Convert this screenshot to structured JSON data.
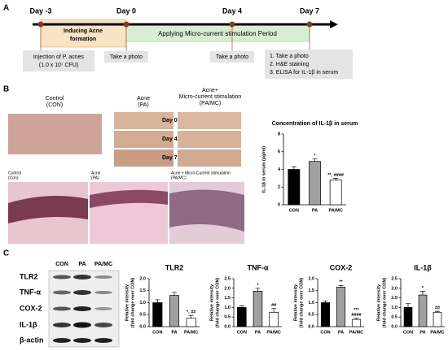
{
  "panel_labels": [
    "A",
    "B",
    "C"
  ],
  "timeline": {
    "days": [
      "Day -3",
      "Day 0",
      "Day 4",
      "Day 7"
    ],
    "phase1": [
      "Inducing Acne",
      "formation"
    ],
    "phase2": "Applying Micro-current stimulation Period",
    "injection": [
      "Injection of P. acnes",
      "(1.0 x 10⁷ CFU)"
    ],
    "photo1": "Take a photo",
    "photo2": "Take a photo",
    "final": [
      "1. Take a photo",
      "2. H&E staining",
      "3. ELISA for IL-1β in serum"
    ]
  },
  "photos": {
    "control": [
      "Control",
      "(CON)"
    ],
    "acne": [
      "Acne",
      "(PA)"
    ],
    "pamc": [
      "Acne+",
      "Micro-current stimulation",
      "(PA/MC)"
    ],
    "days": [
      "Day 0",
      "Day 4",
      "Day 7"
    ],
    "histology": [
      [
        "Control",
        "(Con)"
      ],
      [
        "Acne",
        "(PA)"
      ],
      [
        "Acne + Micro-Current stimulation",
        "(PA/MC)"
      ]
    ]
  },
  "blot": {
    "groups": [
      "CON",
      "PA",
      "PA/MC"
    ],
    "proteins": [
      "TLR2",
      "TNF-α",
      "COX-2",
      "IL-1β",
      "β-actin"
    ]
  },
  "chart_data": [
    {
      "type": "bar",
      "title": "Concentration of IL-1β in serum",
      "ylabel": [
        "IL-1β in serum (pg/ml)"
      ],
      "categories": [
        "CON",
        "PA",
        "PA/MC"
      ],
      "values": [
        4.0,
        4.9,
        2.8
      ],
      "errors": [
        0.3,
        0.3,
        0.2
      ],
      "colors": [
        "#000000",
        "#a0a0a0",
        "#ffffff"
      ],
      "annotations": [
        [],
        [
          "*"
        ],
        [
          "**, ####"
        ]
      ],
      "ylim": [
        0,
        8
      ],
      "yticks": [
        0,
        2,
        4,
        6,
        8
      ]
    },
    {
      "type": "bar",
      "title": "TLR2",
      "ylabel": [
        "Relative intensity",
        "(fold change over CON)"
      ],
      "categories": [
        "CON",
        "PA",
        "PA/MC"
      ],
      "values": [
        1.0,
        1.3,
        0.35
      ],
      "errors": [
        0.12,
        0.13,
        0.12
      ],
      "colors": [
        "#000000",
        "#a0a0a0",
        "#ffffff"
      ],
      "annotations": [
        [],
        [],
        [
          "*, ##"
        ]
      ],
      "ylim": [
        0,
        2
      ],
      "yticks": [
        {
          "value": 0,
          "label": "0.0"
        },
        {
          "value": 0.5,
          "label": "0.5"
        },
        {
          "value": 1,
          "label": "1.0"
        },
        {
          "value": 1.5,
          "label": "1.5"
        },
        {
          "value": 2,
          "label": "2.0"
        }
      ]
    },
    {
      "type": "bar",
      "title": "TNF-α",
      "ylabel": [
        "Relative intensity",
        "(fold change over CON)"
      ],
      "categories": [
        "CON",
        "PA",
        "PA/MC"
      ],
      "values": [
        1.0,
        1.85,
        0.75
      ],
      "errors": [
        0.08,
        0.15,
        0.2
      ],
      "colors": [
        "#000000",
        "#a0a0a0",
        "#ffffff"
      ],
      "annotations": [
        [],
        [
          "*"
        ],
        [
          "##"
        ]
      ],
      "ylim": [
        0,
        2.5
      ],
      "yticks": [
        {
          "value": 0,
          "label": "0.0"
        },
        {
          "value": 0.5,
          "label": "0.5"
        },
        {
          "value": 1,
          "label": "1.0"
        },
        {
          "value": 1.5,
          "label": "1.5"
        },
        {
          "value": 2,
          "label": "2.0"
        },
        {
          "value": 2.5,
          "label": "2.5"
        }
      ]
    },
    {
      "type": "bar",
      "title": "COX-2",
      "ylabel": [
        "Relative intensity",
        "(fold change over CON)"
      ],
      "categories": [
        "CON",
        "PA",
        "PA/MC"
      ],
      "values": [
        1.0,
        1.65,
        0.3
      ],
      "errors": [
        0.07,
        0.07,
        0.05
      ],
      "colors": [
        "#000000",
        "#a0a0a0",
        "#ffffff"
      ],
      "annotations": [
        [],
        [
          "**"
        ],
        [
          "***",
          "####"
        ]
      ],
      "ylim": [
        0,
        2
      ],
      "yticks": [
        {
          "value": 0,
          "label": "0.0"
        },
        {
          "value": 0.5,
          "label": "0.5"
        },
        {
          "value": 1,
          "label": "1.0"
        },
        {
          "value": 1.5,
          "label": "1.5"
        },
        {
          "value": 2,
          "label": "2.0"
        }
      ]
    },
    {
      "type": "bar",
      "title": "IL-1β",
      "ylabel": [
        "Relative intensity",
        "(fold change over CON)"
      ],
      "categories": [
        "CON",
        "PA",
        "PA/MC"
      ],
      "values": [
        1.0,
        1.65,
        0.75
      ],
      "errors": [
        0.2,
        0.2,
        0.05
      ],
      "colors": [
        "#000000",
        "#a0a0a0",
        "#ffffff"
      ],
      "annotations": [
        [],
        [
          "*"
        ],
        [
          "##"
        ]
      ],
      "ylim": [
        0,
        2.5
      ],
      "yticks": [
        {
          "value": 0,
          "label": "0.0"
        },
        {
          "value": 0.5,
          "label": "0.5"
        },
        {
          "value": 1,
          "label": "1.0"
        },
        {
          "value": 1.5,
          "label": "1.5"
        },
        {
          "value": 2,
          "label": "2.0"
        },
        {
          "value": 2.5,
          "label": "2.5"
        }
      ]
    }
  ]
}
